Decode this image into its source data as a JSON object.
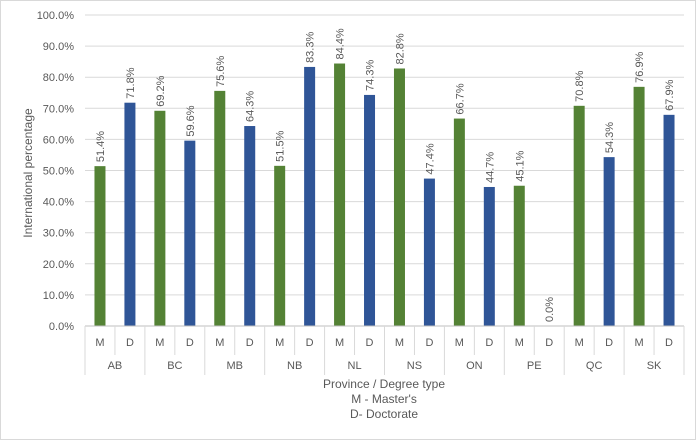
{
  "chart_data": {
    "type": "bar",
    "ylabel": "International percentage",
    "xlabel_lines": [
      "Province / Degree type",
      "M - Master's",
      "D- Doctorate"
    ],
    "ylim": [
      0,
      100
    ],
    "yticks": [
      "0.0%",
      "10.0%",
      "20.0%",
      "30.0%",
      "40.0%",
      "50.0%",
      "60.0%",
      "70.0%",
      "80.0%",
      "90.0%",
      "100.0%"
    ],
    "grid": true,
    "provinces": [
      "AB",
      "BC",
      "MB",
      "NB",
      "NL",
      "NS",
      "ON",
      "PE",
      "QC",
      "SK"
    ],
    "degree_labels": [
      "M",
      "D"
    ],
    "series": [
      {
        "degree": "M",
        "color": "#548235",
        "values": [
          51.4,
          69.2,
          75.6,
          51.5,
          84.4,
          82.8,
          66.7,
          45.1,
          70.8,
          76.9
        ],
        "labels": [
          "51.4%",
          "69.2%",
          "75.6%",
          "51.5%",
          "84.4%",
          "82.8%",
          "66.7%",
          "45.1%",
          "70.8%",
          "76.9%"
        ]
      },
      {
        "degree": "D",
        "color": "#2f5597",
        "values": [
          71.8,
          59.6,
          64.3,
          83.3,
          74.3,
          47.4,
          44.7,
          0.0,
          54.3,
          67.9
        ],
        "labels": [
          "71.8%",
          "59.6%",
          "64.3%",
          "83.3%",
          "74.3%",
          "47.4%",
          "44.7%",
          "0.0%",
          "54.3%",
          "67.9%"
        ]
      }
    ]
  }
}
